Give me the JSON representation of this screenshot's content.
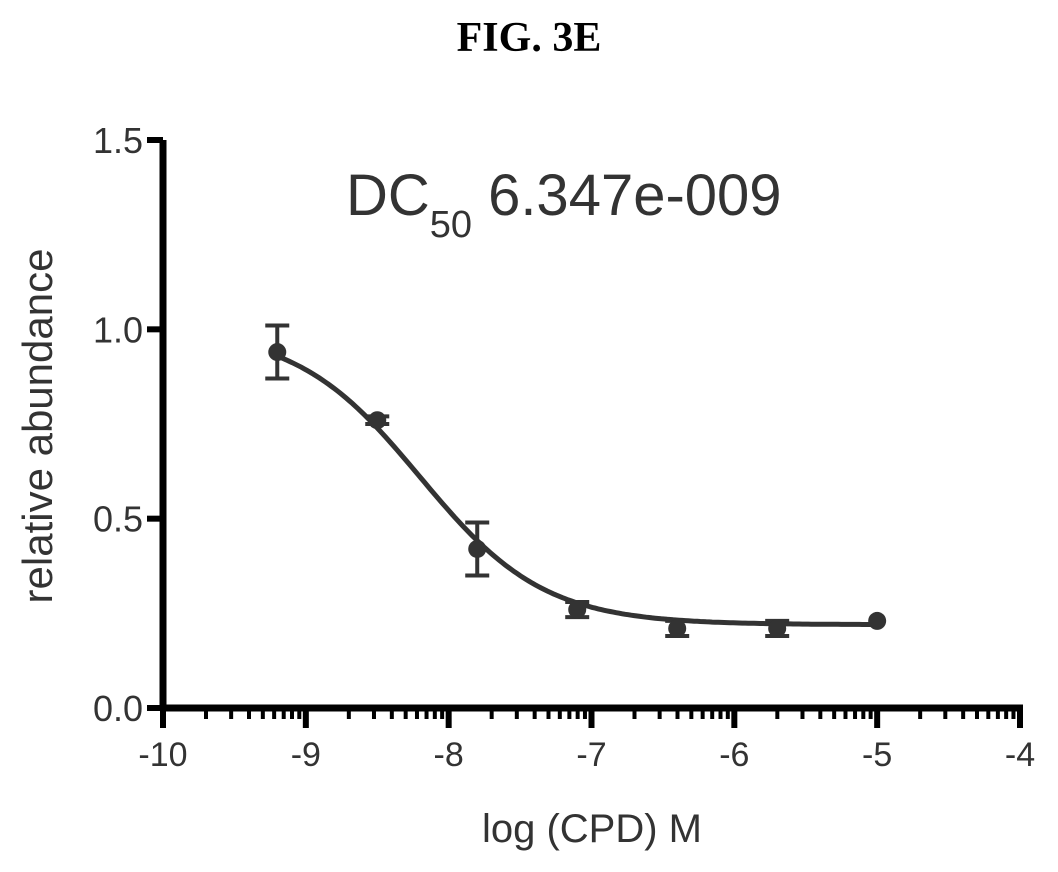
{
  "figure": {
    "title": "FIG. 3E"
  },
  "chart_data": {
    "type": "scatter",
    "title": "",
    "xlabel": "log (CPD) M",
    "ylabel": "relative abundance",
    "xlim": [
      -10,
      -4
    ],
    "ylim": [
      0,
      1.5
    ],
    "xticks": [
      "-10",
      "-9",
      "-8",
      "-7",
      "-6",
      "-5",
      "-4"
    ],
    "yticks": [
      "0.0",
      "0.5",
      "1.0",
      "1.5"
    ],
    "x_minor_ticks": "log",
    "grid": false,
    "legend": "none",
    "annotation": {
      "prefix": "DC",
      "subscript": "50",
      "value": "6.347e-009"
    },
    "series": [
      {
        "points": [
          {
            "x": -9.2,
            "y": 0.94,
            "err": 0.07
          },
          {
            "x": -8.5,
            "y": 0.76,
            "err": 0.01
          },
          {
            "x": -7.8,
            "y": 0.42,
            "err": 0.07
          },
          {
            "x": -7.1,
            "y": 0.26,
            "err": 0.02
          },
          {
            "x": -6.4,
            "y": 0.21,
            "err": 0.02
          },
          {
            "x": -5.7,
            "y": 0.21,
            "err": 0.02
          },
          {
            "x": -5.0,
            "y": 0.23,
            "err": 0.0
          }
        ],
        "fit": {
          "model": "sigmoid",
          "top": 1.0,
          "bottom": 0.22,
          "logDC50": -8.2,
          "hillslope": -1.0
        }
      }
    ],
    "colors": {
      "axis": "#000000",
      "text": "#333333",
      "data": "#333333"
    }
  }
}
